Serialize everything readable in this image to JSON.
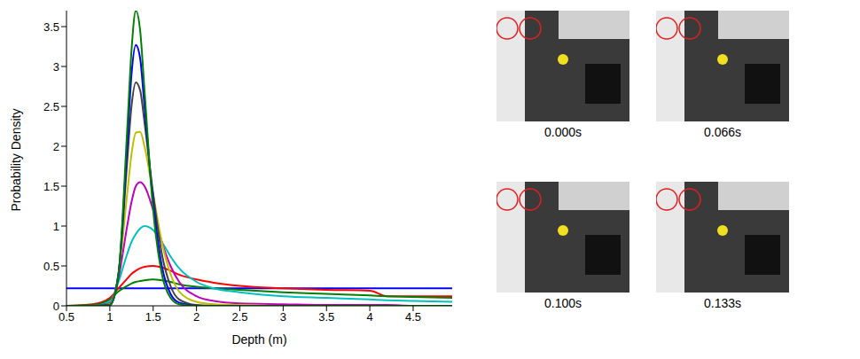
{
  "chart_data": {
    "type": "line",
    "x_label": "Depth (m)",
    "y_label": "Probability Density",
    "x": [
      0.5,
      0.8,
      1.0,
      1.1,
      1.2,
      1.25,
      1.3,
      1.35,
      1.4,
      1.5,
      1.6,
      1.7,
      1.8,
      2.0,
      2.2,
      2.5,
      3.0,
      3.5,
      4.0,
      4.2,
      4.5,
      4.95
    ],
    "xlim": [
      0.5,
      4.95
    ],
    "xticks": [
      0.5,
      1,
      1.5,
      2,
      2.5,
      3,
      3.5,
      4,
      4.5
    ],
    "ylim": [
      0,
      3.7
    ],
    "yticks": [
      0,
      0.5,
      1,
      1.5,
      2,
      2.5,
      3,
      3.5
    ],
    "grid": false,
    "series": [
      {
        "color": "#0000ff",
        "values": [
          0.22,
          0.22,
          0.22,
          0.22,
          0.22,
          0.22,
          0.22,
          0.22,
          0.22,
          0.22,
          0.22,
          0.22,
          0.22,
          0.22,
          0.22,
          0.22,
          0.22,
          0.22,
          0.22,
          0.22,
          0.22,
          0.22
        ]
      },
      {
        "color": "#ff0000",
        "values": [
          0,
          0.02,
          0.1,
          0.22,
          0.34,
          0.4,
          0.44,
          0.47,
          0.49,
          0.5,
          0.48,
          0.44,
          0.39,
          0.33,
          0.29,
          0.25,
          0.22,
          0.2,
          0.19,
          0.12,
          0.12,
          0.12
        ]
      },
      {
        "color": "#008000",
        "values": [
          0,
          0.01,
          0.08,
          0.18,
          0.25,
          0.28,
          0.3,
          0.31,
          0.32,
          0.33,
          0.32,
          0.3,
          0.27,
          0.24,
          0.22,
          0.2,
          0.17,
          0.15,
          0.13,
          0.12,
          0.11,
          0.1
        ]
      },
      {
        "color": "#00bfbf",
        "values": [
          0,
          0,
          0.05,
          0.3,
          0.65,
          0.8,
          0.9,
          0.97,
          1.0,
          0.95,
          0.8,
          0.62,
          0.47,
          0.3,
          0.22,
          0.17,
          0.12,
          0.1,
          0.08,
          0.07,
          0.06,
          0.05
        ]
      },
      {
        "color": "#bf00bf",
        "values": [
          0,
          0,
          0.03,
          0.35,
          1.0,
          1.3,
          1.5,
          1.55,
          1.5,
          1.2,
          0.8,
          0.5,
          0.3,
          0.12,
          0.06,
          0.03,
          0.02,
          0.01,
          0.01,
          0.01,
          0,
          0
        ]
      },
      {
        "color": "#bfbf00",
        "values": [
          0,
          0,
          0.02,
          0.4,
          1.4,
          1.9,
          2.17,
          2.18,
          2.0,
          1.4,
          0.8,
          0.4,
          0.18,
          0.05,
          0.02,
          0.01,
          0,
          0,
          0,
          0,
          0,
          0
        ]
      },
      {
        "color": "#404040",
        "values": [
          0,
          0,
          0.01,
          0.4,
          1.8,
          2.5,
          2.8,
          2.7,
          2.3,
          1.4,
          0.65,
          0.25,
          0.08,
          0.01,
          0,
          0,
          0,
          0,
          0,
          0,
          0,
          0
        ]
      },
      {
        "color": "#0000ff",
        "values": [
          0,
          0,
          0.01,
          0.4,
          2.0,
          2.9,
          3.27,
          3.1,
          2.5,
          1.3,
          0.5,
          0.15,
          0.04,
          0,
          0,
          0,
          0,
          0,
          0,
          0,
          0,
          0
        ]
      },
      {
        "color": "#008000",
        "values": [
          0,
          0,
          0.01,
          0.4,
          2.2,
          3.2,
          3.7,
          3.45,
          2.7,
          1.2,
          0.4,
          0.1,
          0.02,
          0,
          0,
          0,
          0,
          0,
          0,
          0,
          0,
          0
        ]
      }
    ]
  },
  "image_captions": [
    "0.000s",
    "0.066s",
    "0.100s",
    "0.133s"
  ]
}
